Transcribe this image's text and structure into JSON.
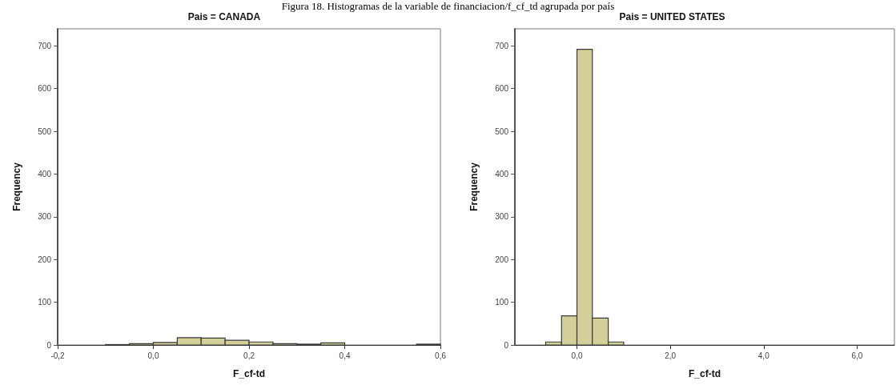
{
  "chart_data": [
    {
      "type": "histogram",
      "title": "Pais = CANADA",
      "xlabel": "F_cf-td",
      "ylabel": "Frequency",
      "color": "#d3cf98",
      "annotations": [
        "Figura 18. Histogramas de la variable de financiacion/f_cf_td agrupada por país"
      ],
      "bins": [
        -0.2,
        -0.15,
        -0.1,
        -0.05,
        0,
        0.05,
        0.1,
        0.15,
        0.2,
        0.25,
        0.3,
        0.35,
        0.4,
        0.45,
        0.5,
        0.55,
        0.6
      ],
      "values": [
        0,
        0,
        1,
        3,
        6,
        17,
        16,
        11,
        7,
        3,
        2,
        5,
        0,
        0,
        0,
        2
      ],
      "xlim": [
        -0.2,
        0.6
      ],
      "xticks": [
        {
          "value": -0.2,
          "label": "-0,2"
        },
        {
          "value": 0,
          "label": "0,0"
        },
        {
          "value": 0.2,
          "label": "0,2"
        },
        {
          "value": 0.4,
          "label": "0,4"
        },
        {
          "value": 0.6,
          "label": "0,6"
        }
      ],
      "ylim": [
        0,
        740
      ],
      "yticks": [
        0,
        100,
        200,
        300,
        400,
        500,
        600,
        700
      ],
      "grid": false
    },
    {
      "type": "histogram",
      "title": "Pais = UNITED STATES",
      "xlabel": "F_cf-td",
      "ylabel": "Frequency",
      "color": "#d3cf98",
      "bins": [
        -0.67,
        -0.33,
        0,
        0.33,
        0.67,
        1
      ],
      "values": [
        7,
        68,
        692,
        63,
        7
      ],
      "xlim": [
        -1.33,
        6.8
      ],
      "xticks": [
        {
          "value": 0,
          "label": "0,0"
        },
        {
          "value": 2,
          "label": "2,0"
        },
        {
          "value": 4,
          "label": "4,0"
        },
        {
          "value": 6,
          "label": "6,0"
        }
      ],
      "ylim": [
        0,
        740
      ],
      "yticks": [
        0,
        100,
        200,
        300,
        400,
        500,
        600,
        700
      ],
      "grid": false
    }
  ]
}
